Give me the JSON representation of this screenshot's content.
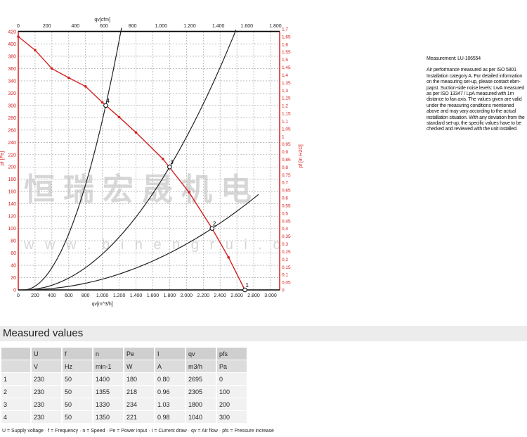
{
  "chart_data": {
    "type": "line",
    "title": "",
    "xlabel": "qv[m^3/h]",
    "x2label": "qv[cfm]",
    "ylabel": "pf [Pa]",
    "y2label": "pf [in H2O]",
    "xlim": [
      0,
      3100
    ],
    "ylim": [
      0,
      420
    ],
    "x_ticks": [
      "0",
      "200",
      "400",
      "600",
      "800",
      "1.000",
      "1.200",
      "1.400",
      "1.600",
      "1.800",
      "2.000",
      "2.200",
      "2.400",
      "2.600",
      "2.800",
      "3.000"
    ],
    "x2_ticks": [
      "0",
      "200",
      "400",
      "600",
      "800",
      "1.000",
      "1.200",
      "1.400",
      "1.600",
      "1.800"
    ],
    "y_ticks": [
      "0",
      "20",
      "40",
      "60",
      "80",
      "100",
      "120",
      "140",
      "160",
      "180",
      "200",
      "220",
      "240",
      "260",
      "280",
      "300",
      "320",
      "340",
      "360",
      "380",
      "400",
      "420"
    ],
    "y2_ticks": [
      "0",
      "0,05",
      "0,1",
      "0,15",
      "0,2",
      "0,25",
      "0,3",
      "0,35",
      "0,4",
      "0,45",
      "0,5",
      "0,55",
      "0,6",
      "0,65",
      "0,7",
      "0,75",
      "0,8",
      "0,85",
      "0,9",
      "0,95",
      "1",
      "1,05",
      "1,1",
      "1,15",
      "1,2",
      "1,25",
      "1,3",
      "1,35",
      "1,4",
      "1,45",
      "1,5",
      "1,55",
      "1,6",
      "1,65",
      "1,7"
    ],
    "grid": true,
    "fan_curve": {
      "color": "#d42020",
      "x": [
        0,
        200,
        400,
        600,
        800,
        1000,
        1200,
        1400,
        1720,
        2030,
        2305,
        2500,
        2695
      ],
      "y": [
        412,
        390,
        360,
        345,
        331,
        305,
        281,
        256,
        213,
        159,
        100,
        53,
        0
      ]
    },
    "system_curves": [
      {
        "through": [
          1040,
          300
        ],
        "x_end": 1228
      },
      {
        "through": [
          1800,
          200
        ],
        "x_end": 2590
      },
      {
        "through": [
          2305,
          100
        ],
        "x_end": 2857
      }
    ],
    "operating_points": [
      {
        "label": "1",
        "x": 2695,
        "y": 0
      },
      {
        "label": "2",
        "x": 2305,
        "y": 100
      },
      {
        "label": "3",
        "x": 1800,
        "y": 200
      },
      {
        "label": "4",
        "x": 1040,
        "y": 300
      }
    ]
  },
  "watermark": {
    "cn": "恒瑞宏晟机电",
    "url": "w w w . b i n e n g r u i . c"
  },
  "info": {
    "measurement": "Measurement: LU-106554",
    "text": "Air performance measured as per ISO 5801 Installation category A. For detailed information on the measuring set-up, please contact ebm-papst. Suction-side noise levels: LwA measured as per ISO 13347 / LpA measured with 1m distance to fan axis. The values given are valid under the measuring conditions mentioned above and may vary according to the actual installation situation. With any deviation from the standard set-up, the specific values have to be checked and reviewed with the unit installed."
  },
  "measured": {
    "title": "Measured values",
    "headers": [
      "",
      "U",
      "f",
      "n",
      "Pe",
      "I",
      "qv",
      "pfs"
    ],
    "units": [
      "",
      "V",
      "Hz",
      "min-1",
      "W",
      "A",
      "m3/h",
      "Pa"
    ],
    "rows": [
      [
        "1",
        "230",
        "50",
        "1400",
        "180",
        "0.80",
        "2695",
        "0"
      ],
      [
        "2",
        "230",
        "50",
        "1355",
        "218",
        "0.96",
        "2305",
        "100"
      ],
      [
        "3",
        "230",
        "50",
        "1330",
        "234",
        "1.03",
        "1800",
        "200"
      ],
      [
        "4",
        "230",
        "50",
        "1350",
        "221",
        "0.98",
        "1040",
        "300"
      ]
    ],
    "legend": "U = Supply voltage · f = Frequency · n = Speed · Pe = Power input · I = Current draw · qv = Air flow · pfs = Pressure increase"
  }
}
